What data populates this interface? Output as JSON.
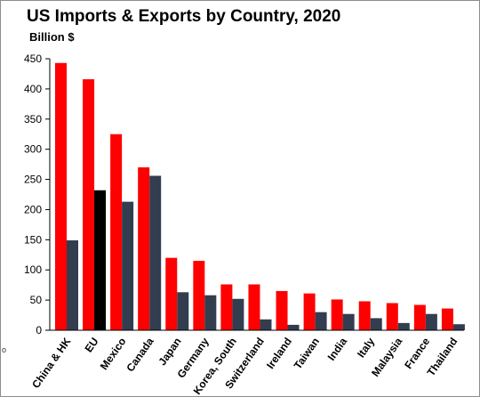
{
  "chart_data": {
    "type": "bar",
    "title": "US Imports & Exports by Country, 2020",
    "ylabel": "Billion $",
    "xlabel": "",
    "ylim": [
      0,
      450
    ],
    "yticks": [
      0,
      50,
      100,
      150,
      200,
      250,
      300,
      350,
      400,
      450
    ],
    "grid": false,
    "legend": "none",
    "categories": [
      "China & HK",
      "EU",
      "Mexico",
      "Canada",
      "Japan",
      "Germany",
      "Korea, South",
      "Switzerland",
      "Ireland",
      "Taiwan",
      "India",
      "Italy",
      "Malaysia",
      "France",
      "Thailand"
    ],
    "series": [
      {
        "values": [
          443,
          416,
          325,
          270,
          120,
          115,
          76,
          76,
          65,
          61,
          51,
          48,
          45,
          42,
          36
        ],
        "color": "#ff0000"
      },
      {
        "values": [
          149,
          232,
          213,
          256,
          63,
          58,
          52,
          18,
          9,
          30,
          27,
          20,
          12,
          27,
          10
        ],
        "color": "#323e4f",
        "highlight": {
          "index": 1,
          "color": "#000000"
        }
      }
    ]
  },
  "decor": {
    "corner_mark": "o"
  }
}
